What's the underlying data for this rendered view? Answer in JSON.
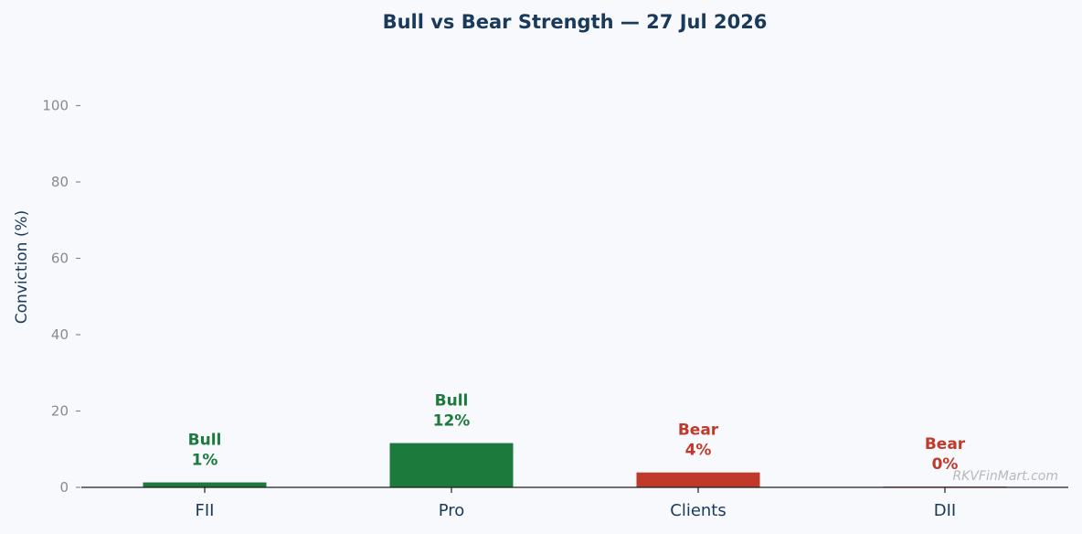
{
  "chart_data": {
    "type": "bar",
    "title": "Bull vs Bear Strength — 27 Jul 2026",
    "ylabel": "Conviction (%)",
    "xlabel": "",
    "ylim": [
      0,
      100
    ],
    "yticks": [
      0,
      20,
      40,
      60,
      80,
      100
    ],
    "grid": false,
    "categories": [
      "FII",
      "Pro",
      "Clients",
      "DII"
    ],
    "values": [
      1.3,
      11.6,
      3.9,
      0.2
    ],
    "labels": [
      {
        "sentiment": "Bull",
        "percent": "1%"
      },
      {
        "sentiment": "Bull",
        "percent": "12%"
      },
      {
        "sentiment": "Bear",
        "percent": "4%"
      },
      {
        "sentiment": "Bear",
        "percent": "0%"
      }
    ],
    "colors": {
      "Bull": "#1b7a3c",
      "Bear": "#c0392b"
    },
    "watermark": "RKVFinMart.com"
  }
}
